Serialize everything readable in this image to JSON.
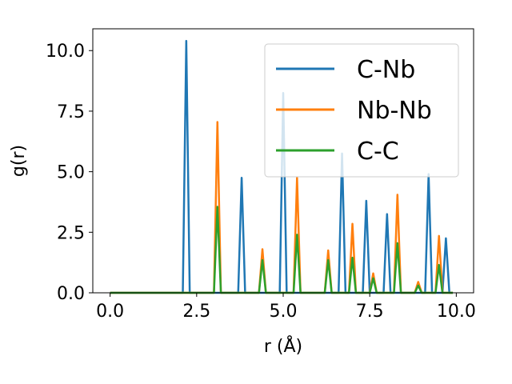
{
  "chart_data": {
    "type": "line",
    "xlabel": "r (Å)",
    "ylabel": "g(r)",
    "xlim": [
      -0.5,
      10.5
    ],
    "ylim": [
      0,
      10.9
    ],
    "xticks": [
      0.0,
      2.5,
      5.0,
      7.5,
      10.0
    ],
    "xtick_labels": [
      "0.0",
      "2.5",
      "5.0",
      "7.5",
      "10.0"
    ],
    "yticks": [
      0.0,
      2.5,
      5.0,
      7.5,
      10.0
    ],
    "ytick_labels": [
      "0.0",
      "2.5",
      "5.0",
      "7.5",
      "10.0"
    ],
    "grid": false,
    "legend_position": "upper right",
    "series": [
      {
        "name": "C-Nb",
        "color": "#1f77b4",
        "x": [
          0.0,
          2.1,
          2.2,
          2.3,
          3.7,
          3.8,
          3.9,
          4.9,
          5.0,
          5.1,
          6.6,
          6.7,
          6.8,
          7.3,
          7.4,
          7.5,
          7.9,
          8.0,
          8.1,
          9.1,
          9.2,
          9.3,
          9.6,
          9.7,
          9.8,
          9.9
        ],
        "y": [
          0.0,
          0.0,
          10.4,
          0.0,
          0.0,
          4.75,
          0.0,
          0.0,
          8.25,
          0.0,
          0.0,
          5.75,
          0.0,
          0.0,
          3.8,
          0.0,
          0.0,
          3.25,
          0.0,
          0.0,
          4.9,
          0.0,
          0.0,
          2.25,
          0.0,
          0.0
        ]
      },
      {
        "name": "Nb-Nb",
        "color": "#ff7f0e",
        "x": [
          0.0,
          3.0,
          3.1,
          3.2,
          4.3,
          4.4,
          4.5,
          5.3,
          5.4,
          5.5,
          6.2,
          6.3,
          6.4,
          6.9,
          7.0,
          7.1,
          7.5,
          7.6,
          7.7,
          8.2,
          8.3,
          8.4,
          8.8,
          8.9,
          9.0,
          9.4,
          9.5,
          9.6,
          9.9
        ],
        "y": [
          0.0,
          0.0,
          7.05,
          0.0,
          0.0,
          1.8,
          0.0,
          0.0,
          4.75,
          0.0,
          0.0,
          1.75,
          0.0,
          0.0,
          2.85,
          0.0,
          0.0,
          0.8,
          0.0,
          0.0,
          4.05,
          0.0,
          0.0,
          0.45,
          0.0,
          0.0,
          2.35,
          0.0,
          0.0
        ]
      },
      {
        "name": "C-C",
        "color": "#2ca02c",
        "x": [
          0.0,
          3.0,
          3.1,
          3.2,
          4.3,
          4.4,
          4.5,
          5.3,
          5.4,
          5.5,
          6.2,
          6.3,
          6.4,
          6.9,
          7.0,
          7.1,
          7.5,
          7.6,
          7.7,
          8.2,
          8.3,
          8.4,
          8.8,
          8.9,
          9.0,
          9.4,
          9.5,
          9.6,
          9.9
        ],
        "y": [
          0.0,
          0.0,
          3.55,
          0.0,
          0.0,
          1.35,
          0.0,
          0.0,
          2.4,
          0.0,
          0.0,
          1.35,
          0.0,
          0.0,
          1.45,
          0.0,
          0.0,
          0.6,
          0.0,
          0.0,
          2.05,
          0.0,
          0.0,
          0.3,
          0.0,
          0.0,
          1.15,
          0.0,
          0.0
        ]
      }
    ]
  }
}
